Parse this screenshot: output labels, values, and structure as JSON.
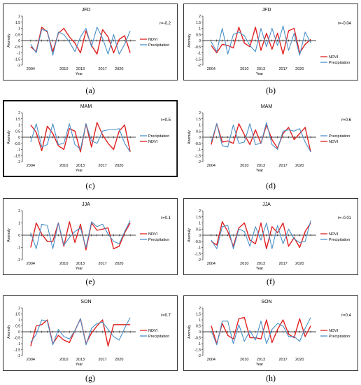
{
  "figure": {
    "chart_data": [
      {
        "panel": "a",
        "type": "line",
        "title": "JFD",
        "r_label": "r=-0.2",
        "ylabel": "Anomaly",
        "xlabel": "Year",
        "xticks": [
          2004,
          2010,
          2013,
          2017,
          2020
        ],
        "xlim": [
          2002.5,
          2023
        ],
        "ylim": [
          -2,
          2
        ],
        "yticks": [
          -2,
          -1.5,
          -1,
          -0.5,
          0,
          0.5,
          1,
          1.5,
          2
        ],
        "x": [
          2004,
          2005,
          2006,
          2007,
          2008,
          2009,
          2010,
          2011,
          2012,
          2013,
          2014,
          2015,
          2016,
          2017,
          2018,
          2019,
          2020,
          2021,
          2022
        ],
        "series": [
          {
            "name": "NDVI",
            "color": "#e02020",
            "values": [
              -0.5,
              -0.9,
              1.1,
              0.7,
              -0.9,
              0.6,
              1.0,
              0.3,
              -0.2,
              -1.0,
              0.8,
              -0.4,
              -1.1,
              0.9,
              0.3,
              -1.0,
              0.1,
              0.4,
              -1.0
            ]
          },
          {
            "name": "Precipitation",
            "color": "#4a90c8",
            "values": [
              -0.3,
              -1.0,
              0.9,
              0.8,
              -1.2,
              0.7,
              0.5,
              -0.1,
              -0.9,
              0.3,
              1.0,
              -0.5,
              1.1,
              0.2,
              -1.1,
              0.5,
              -1.1,
              -0.3,
              0.8
            ]
          }
        ],
        "legend_order": [
          "NDVI",
          "Precipitation"
        ],
        "caption": "(a)"
      },
      {
        "panel": "b",
        "type": "line",
        "title": "JFD",
        "r_label": "r=-0.04",
        "ylabel": "Anomaly",
        "xlabel": "Year",
        "xticks": [
          2004,
          2010,
          2013,
          2017,
          2020
        ],
        "xlim": [
          2002.5,
          2023
        ],
        "ylim": [
          -2,
          2
        ],
        "yticks": [
          -2,
          -1.5,
          -1,
          -0.5,
          0,
          0.5,
          1,
          1.5,
          2
        ],
        "x": [
          2004,
          2005,
          2006,
          2007,
          2008,
          2009,
          2010,
          2011,
          2012,
          2013,
          2014,
          2015,
          2016,
          2017,
          2018,
          2019,
          2020,
          2021,
          2022
        ],
        "series": [
          {
            "name": "NDVI",
            "color": "#e02020",
            "values": [
              -0.4,
              -1.0,
              -0.3,
              -0.4,
              -0.6,
              1.1,
              -0.2,
              -0.5,
              1.1,
              -0.8,
              0.6,
              -0.7,
              0.6,
              -1.1,
              0.8,
              1.0,
              -1.0,
              -0.3,
              0.1
            ]
          },
          {
            "name": "Precipitation",
            "color": "#4a90c8",
            "values": [
              -0.1,
              -0.9,
              1.0,
              -1.1,
              0.5,
              0.7,
              0.4,
              -0.4,
              -0.9,
              1.0,
              -0.5,
              1.0,
              -0.4,
              1.2,
              -0.8,
              0.6,
              -1.2,
              0.7,
              -0.2
            ]
          }
        ],
        "legend_order": [
          "NDVI",
          "Precipitation"
        ],
        "caption": "(b)"
      },
      {
        "panel": "c",
        "type": "line",
        "title": "MAM",
        "r_label": "r=0.5",
        "ylabel": "Anomaly",
        "xlabel": "Year",
        "xticks": [
          2004,
          2010,
          2013,
          2017,
          2020
        ],
        "xlim": [
          2002.5,
          2023
        ],
        "ylim": [
          -2,
          2
        ],
        "yticks": [
          -2,
          -1.5,
          -1,
          -0.5,
          0,
          0.5,
          1,
          1.5,
          2
        ],
        "x": [
          2004,
          2005,
          2006,
          2007,
          2008,
          2009,
          2010,
          2011,
          2012,
          2013,
          2014,
          2015,
          2016,
          2017,
          2018,
          2019,
          2020,
          2021,
          2022
        ],
        "series": [
          {
            "name": "NDVI",
            "color": "#e02020",
            "values": [
              1.0,
              0.4,
              -1.1,
              0.9,
              0.3,
              -0.7,
              -1.0,
              0.7,
              0.5,
              -1.2,
              1.1,
              -0.8,
              1.2,
              0.2,
              -0.5,
              -1.0,
              0.5,
              1.0,
              -1.2
            ]
          },
          {
            "name": "Precipitation",
            "color": "#4a90c8",
            "values": [
              -0.4,
              1.1,
              -0.8,
              -0.6,
              1.1,
              -0.6,
              -0.5,
              1.1,
              -0.6,
              -1.0,
              1.1,
              -0.3,
              -0.5,
              0.5,
              0.6,
              0.6,
              0.7,
              -0.5,
              -1.2
            ]
          }
        ],
        "legend_order": [
          "Precipitation",
          "NDVI"
        ],
        "caption": "(c)"
      },
      {
        "panel": "d",
        "type": "line",
        "title": "MAM",
        "r_label": "r=0.6",
        "ylabel": "Anomaly",
        "xlabel": "Year",
        "xticks": [
          2004,
          2010,
          2013,
          2017,
          2020
        ],
        "xlim": [
          2002.5,
          2023
        ],
        "ylim": [
          -2,
          2
        ],
        "yticks": [
          -2,
          -1.5,
          -1,
          -0.5,
          0,
          0.5,
          1,
          1.5,
          2
        ],
        "x": [
          2004,
          2005,
          2006,
          2007,
          2008,
          2009,
          2010,
          2011,
          2012,
          2013,
          2014,
          2015,
          2016,
          2017,
          2018,
          2019,
          2020,
          2021,
          2022
        ],
        "series": [
          {
            "name": "NDVI",
            "color": "#e02020",
            "values": [
              -0.6,
              1.1,
              -0.4,
              -0.3,
              -0.5,
              1.1,
              0.2,
              -0.6,
              0.6,
              -0.5,
              1.0,
              -0.2,
              -0.9,
              0.3,
              0.8,
              -0.2,
              0.3,
              0.8,
              -1.2
            ]
          },
          {
            "name": "Precipitation",
            "color": "#4a90c8",
            "values": [
              -0.4,
              1.1,
              -0.7,
              -0.8,
              1.0,
              -0.5,
              -0.4,
              1.1,
              -0.6,
              -0.5,
              1.2,
              -0.6,
              -1.0,
              0.5,
              0.6,
              0.5,
              0.7,
              -0.4,
              -1.2
            ]
          }
        ],
        "legend_order": [
          "Precipitation",
          "NDVI"
        ],
        "caption": "(d)"
      },
      {
        "panel": "e",
        "type": "line",
        "title": "JJA",
        "r_label": "r=0.1",
        "ylabel": "Anomaly",
        "xlabel": "Year",
        "xticks": [
          2004,
          2010,
          2013,
          2017,
          2020
        ],
        "xlim": [
          2002.5,
          2023
        ],
        "ylim": [
          -2,
          2
        ],
        "yticks": [
          -2,
          -1,
          0,
          1,
          2
        ],
        "x": [
          2004,
          2005,
          2006,
          2007,
          2008,
          2009,
          2010,
          2011,
          2012,
          2013,
          2014,
          2015,
          2016,
          2017,
          2018,
          2019,
          2020,
          2021,
          2022
        ],
        "series": [
          {
            "name": "NDVI",
            "color": "#e02020",
            "values": [
              -1.0,
              1.0,
              0.1,
              -0.5,
              -0.5,
              1.0,
              -0.9,
              1.1,
              -0.6,
              0.9,
              -1.2,
              1.0,
              0.4,
              0.5,
              0.6,
              -1.1,
              -0.9,
              0.2,
              1.0
            ]
          },
          {
            "name": "Precipitation",
            "color": "#4a90c8",
            "values": [
              0.2,
              -1.1,
              0.9,
              0.8,
              -1.1,
              1.0,
              -0.8,
              -0.2,
              0.3,
              0.6,
              -1.0,
              1.1,
              0.7,
              0.9,
              0.1,
              -0.5,
              -0.7,
              0.3,
              1.2
            ]
          }
        ],
        "legend_order": [
          "NDVI",
          "Precipitation"
        ],
        "caption": "(e)"
      },
      {
        "panel": "f",
        "type": "line",
        "title": "JJA",
        "r_label": "r=-0.01",
        "ylabel": "Anomaly",
        "xlabel": "Year",
        "xticks": [
          2004,
          2010,
          2013,
          2017,
          2020
        ],
        "xlim": [
          2002.5,
          2023
        ],
        "ylim": [
          -2,
          2
        ],
        "yticks": [
          -2,
          -1.5,
          -1,
          -0.5,
          0,
          0.5,
          1,
          1.5,
          2
        ],
        "x": [
          2004,
          2005,
          2006,
          2007,
          2008,
          2009,
          2010,
          2011,
          2012,
          2013,
          2014,
          2015,
          2016,
          2017,
          2018,
          2019,
          2020,
          2021,
          2022
        ],
        "series": [
          {
            "name": "NDVI",
            "color": "#e02020",
            "values": [
              -0.5,
              -0.8,
              1.1,
              0.3,
              -0.9,
              0.6,
              1.0,
              -0.4,
              -0.7,
              1.0,
              -1.1,
              0.7,
              0.2,
              1.0,
              -0.9,
              -0.2,
              -1.0,
              0.3,
              1.0
            ]
          },
          {
            "name": "Precipitation",
            "color": "#4a90c8",
            "values": [
              -0.4,
              -1.1,
              0.7,
              0.8,
              -1.1,
              0.5,
              0.3,
              -0.9,
              0.7,
              -0.4,
              1.0,
              -1.1,
              0.8,
              -0.7,
              0.5,
              -0.3,
              -0.6,
              -0.5,
              1.2
            ]
          }
        ],
        "legend_order": [
          "NDVI",
          "Precipitation"
        ],
        "caption": "(f)"
      },
      {
        "panel": "g",
        "type": "line",
        "title": "SON",
        "r_label": "r=0.7",
        "ylabel": "Anomaly",
        "xlabel": "Year",
        "xticks": [
          2004,
          2010,
          2013,
          2017,
          2020
        ],
        "xlim": [
          2002.5,
          2023
        ],
        "ylim": [
          -2,
          2
        ],
        "yticks": [
          -2,
          -1.5,
          -1,
          -0.5,
          0,
          0.5,
          1,
          1.5,
          2
        ],
        "x": [
          2004,
          2005,
          2006,
          2007,
          2008,
          2009,
          2010,
          2011,
          2012,
          2013,
          2014,
          2015,
          2016,
          2017,
          2018,
          2019,
          2020,
          2021,
          2022
        ],
        "series": [
          {
            "name": "NDVI",
            "color": "#e02020",
            "values": [
              -1.2,
              0.5,
              0.6,
              1.0,
              -1.0,
              -0.3,
              -0.7,
              -0.9,
              0.1,
              1.1,
              -1.0,
              -0.1,
              0.5,
              1.0,
              -1.2,
              0.6,
              0.6,
              0.6,
              0.6
            ]
          },
          {
            "name": "Precipitation",
            "color": "#4a90c8",
            "values": [
              -0.9,
              -0.2,
              1.0,
              0.9,
              -1.1,
              0.2,
              -0.4,
              -0.6,
              0.1,
              1.1,
              -1.1,
              0.3,
              0.7,
              0.8,
              0.2,
              -0.4,
              -0.7,
              0.3,
              1.2
            ]
          }
        ],
        "legend_order": [
          "NDVI",
          "Precipitation"
        ],
        "caption": "(g)"
      },
      {
        "panel": "h",
        "type": "line",
        "title": "SON",
        "r_label": "r=0.4",
        "ylabel": "Anomaly",
        "xlabel": "Year",
        "xticks": [
          2004,
          2010,
          2013,
          2017,
          2020
        ],
        "xlim": [
          2002.5,
          2023
        ],
        "ylim": [
          -2,
          2
        ],
        "yticks": [
          -2,
          -1.5,
          -1,
          -0.5,
          0,
          0.5,
          1,
          1.5,
          2
        ],
        "x": [
          2004,
          2005,
          2006,
          2007,
          2008,
          2009,
          2010,
          2011,
          2012,
          2013,
          2014,
          2015,
          2016,
          2017,
          2018,
          2019,
          2020,
          2021,
          2022
        ],
        "series": [
          {
            "name": "NDVI",
            "color": "#e02020",
            "values": [
              0.5,
              -1.0,
              0.7,
              -0.3,
              -0.6,
              1.1,
              1.2,
              -0.5,
              -0.5,
              -0.6,
              1.0,
              -0.9,
              0.2,
              1.0,
              -0.2,
              -0.5,
              1.1,
              -0.4,
              0.5
            ]
          },
          {
            "name": "Precipitation",
            "color": "#4a90c8",
            "values": [
              0.1,
              -1.1,
              0.9,
              0.9,
              -1.0,
              0.6,
              -0.8,
              0.1,
              -0.7,
              0.9,
              -1.0,
              0.2,
              0.7,
              0.5,
              -0.4,
              -0.4,
              -0.8,
              0.3,
              1.2
            ]
          }
        ],
        "legend_order": [
          "NDVI",
          "Precipitation"
        ],
        "caption": "(h)"
      }
    ]
  }
}
